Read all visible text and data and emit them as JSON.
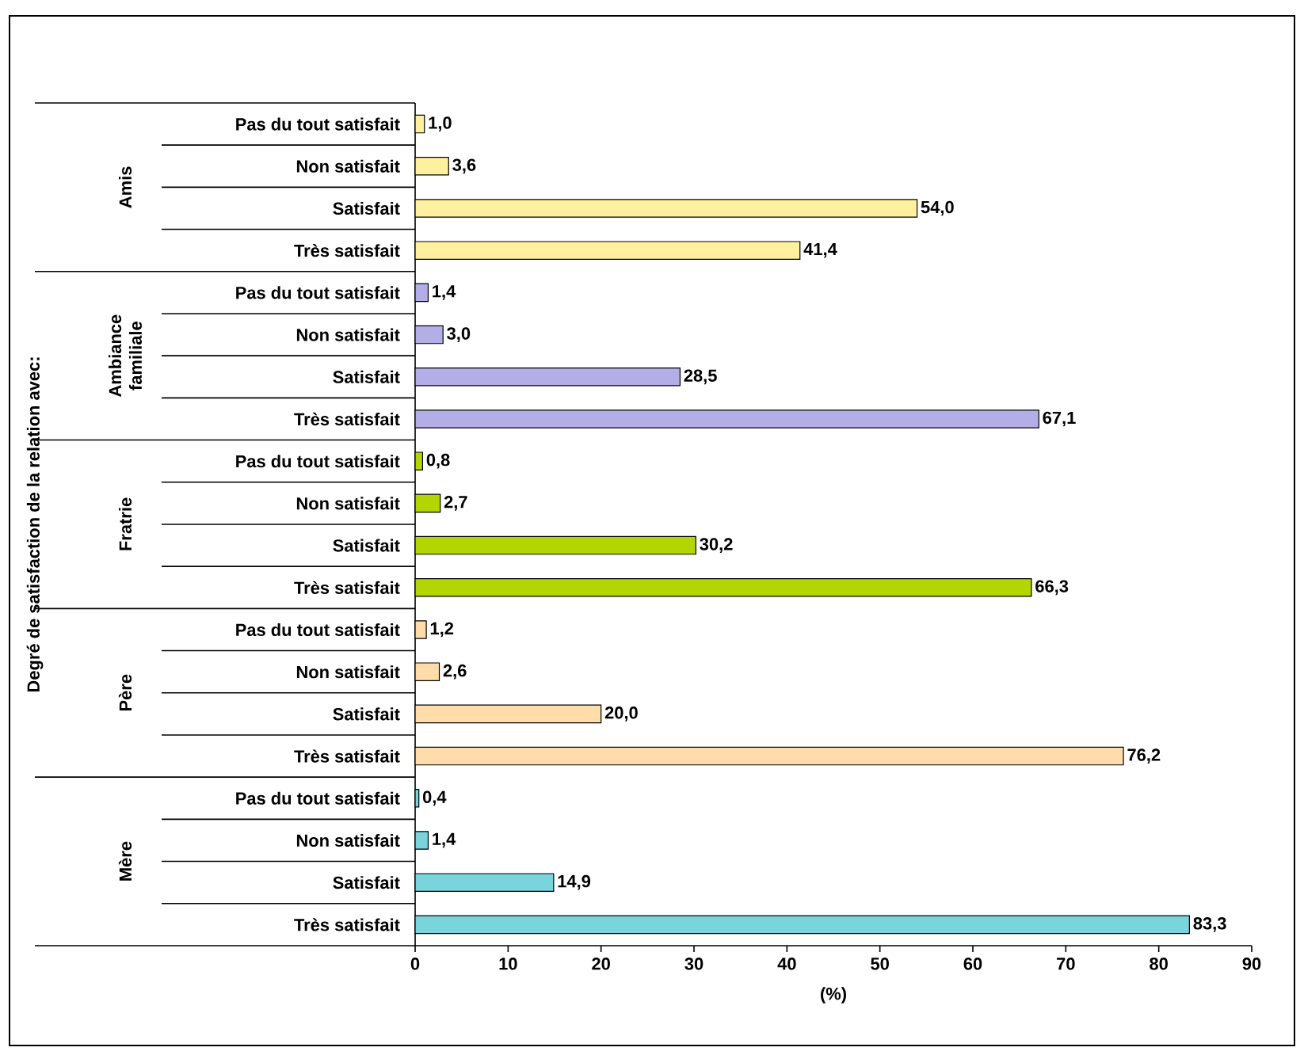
{
  "chart_data": {
    "type": "bar",
    "orientation": "horizontal",
    "xlabel": "(%)",
    "categories": [
      "Pas du tout satisfait",
      "Non satisfait",
      "Satisfait",
      "Très satisfait",
      "Pas du tout satisfait",
      "Non satisfait",
      "Satisfait",
      "Très satisfait",
      "Pas du tout satisfait",
      "Non satisfait",
      "Satisfait",
      "Très satisfait",
      "Pas du tout satisfait",
      "Non satisfait",
      "Satisfait",
      "Très satisfait",
      "Pas du tout satisfait",
      "Non satisfait",
      "Satisfait",
      "Très satisfait"
    ],
    "xlim": [
      0,
      90
    ],
    "xticks": [
      0,
      10,
      20,
      30,
      40,
      50,
      60,
      70,
      80,
      90
    ],
    "values": [
      1.0,
      3.6,
      54.0,
      41.4,
      1.4,
      3.0,
      28.5,
      67.1,
      0.8,
      2.7,
      30.2,
      66.3,
      1.2,
      2.6,
      20.0,
      76.2,
      0.4,
      1.4,
      14.9,
      83.3
    ],
    "value_labels": [
      "1,0",
      "3,6",
      "54,0",
      "41,4",
      "1,4",
      "3,0",
      "28,5",
      "67,1",
      "0,8",
      "2,7",
      "30,2",
      "66,3",
      "1,2",
      "2,6",
      "20,0",
      "76,2",
      "0,4",
      "1,4",
      "14,9",
      "83,3"
    ],
    "colors": [
      "#fff0a0",
      "#fff0a0",
      "#fff0a0",
      "#fff0a0",
      "#b3aee6",
      "#b3aee6",
      "#b3aee6",
      "#b3aee6",
      "#b3d600",
      "#b3d600",
      "#b3d600",
      "#b3d600",
      "#ffdcaa",
      "#ffdcaa",
      "#ffdcaa",
      "#ffdcaa",
      "#79d4dc",
      "#79d4dc",
      "#79d4dc",
      "#79d4dc"
    ],
    "annotations": [
      "Degré de satisfaction de la relation avec:",
      "Amis",
      "Ambiance familiale",
      "Fratrie",
      "Père",
      "Mère"
    ]
  }
}
